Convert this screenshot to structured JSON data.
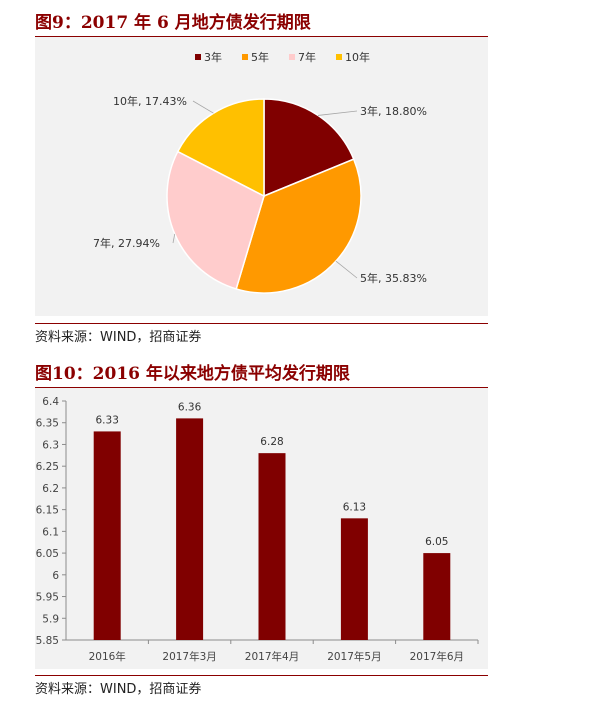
{
  "figure9": {
    "title": "图9：2017 年 6 月地方债发行期限",
    "source": "资料来源：WIND，招商证券"
  },
  "figure10": {
    "title": "图10：2016 年以来地方债平均发行期限",
    "source": "资料来源：WIND，招商证券"
  },
  "colors": {
    "accent": "#8b0000",
    "panel": "#f2f2f2"
  },
  "chart_data": [
    {
      "type": "pie",
      "legend_position": "top",
      "slices": [
        {
          "label": "3年",
          "value": 18.8,
          "display": "3年, 18.80%",
          "color": "#800000"
        },
        {
          "label": "5年",
          "value": 35.83,
          "display": "5年, 35.83%",
          "color": "#ff9900"
        },
        {
          "label": "7年",
          "value": 27.94,
          "display": "7年, 27.94%",
          "color": "#ffcccc"
        },
        {
          "label": "10年",
          "value": 17.43,
          "display": "10年, 17.43%",
          "color": "#ffc000"
        }
      ]
    },
    {
      "type": "bar",
      "categories": [
        "2016年",
        "2017年3月",
        "2017年4月",
        "2017年5月",
        "2017年6月"
      ],
      "values": [
        6.33,
        6.36,
        6.28,
        6.13,
        6.05
      ],
      "value_labels": [
        "6.33",
        "6.36",
        "6.28",
        "6.13",
        "6.05"
      ],
      "ylim": [
        5.85,
        6.4
      ],
      "yticks": [
        "5.85",
        "5.9",
        "5.95",
        "6",
        "6.05",
        "6.1",
        "6.15",
        "6.2",
        "6.25",
        "6.3",
        "6.35",
        "6.4"
      ],
      "bar_color": "#800000",
      "grid": false
    }
  ]
}
